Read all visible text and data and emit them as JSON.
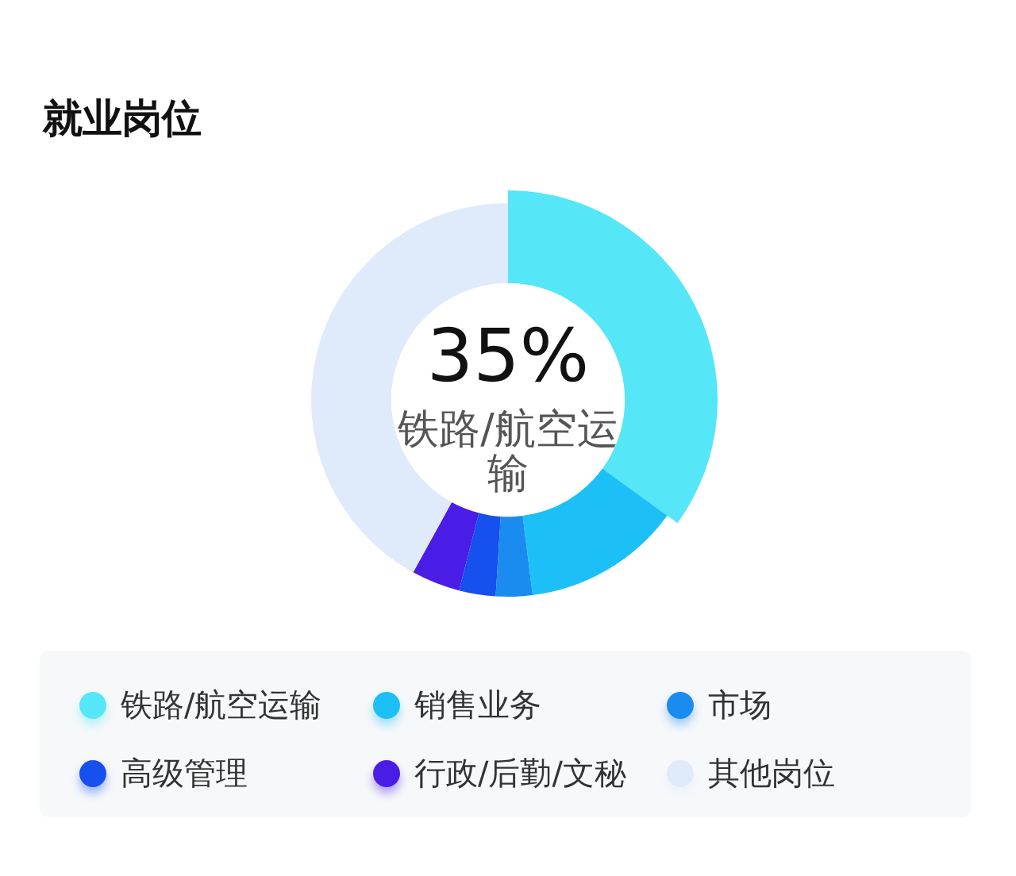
{
  "chart_data": {
    "type": "donut",
    "title": "就业岗位",
    "categories": [
      "铁路/航空运输",
      "销售业务",
      "市场",
      "高级管理",
      "行政/后勤/文秘",
      "其他岗位"
    ],
    "values": [
      35,
      13,
      3,
      3,
      4,
      42
    ],
    "colors": [
      "#55e6f8",
      "#1cc0f6",
      "#1a8cf0",
      "#1650ee",
      "#4a1de6",
      "#dfeafa"
    ],
    "value_labels": [
      "35%",
      null,
      null,
      null,
      null,
      null
    ],
    "legend": "bottom"
  }
}
